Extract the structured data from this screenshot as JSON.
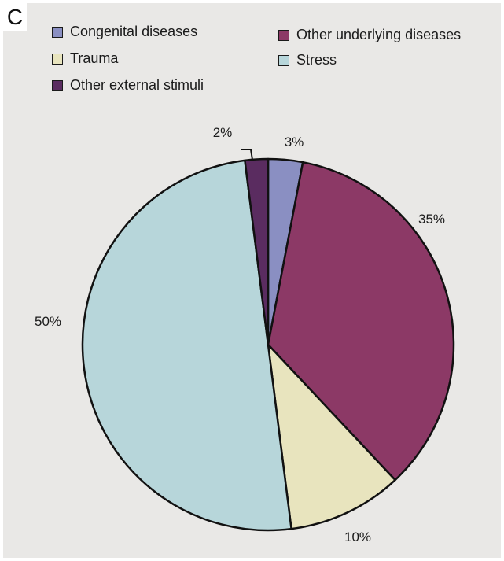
{
  "panel_label": "C",
  "chart_data": {
    "type": "pie",
    "title": "",
    "legend_position": "top",
    "slices": [
      {
        "label": "Congenital diseases",
        "value": 3,
        "value_label": "3%",
        "color": "#8a8fc2"
      },
      {
        "label": "Other underlying diseases",
        "value": 35,
        "value_label": "35%",
        "color": "#8c3966"
      },
      {
        "label": "Trauma",
        "value": 10,
        "value_label": "10%",
        "color": "#e8e4be"
      },
      {
        "label": "Stress",
        "value": 50,
        "value_label": "50%",
        "color": "#b7d6da"
      },
      {
        "label": "Other external stimuli",
        "value": 2,
        "value_label": "2%",
        "color": "#5a2c60"
      }
    ]
  }
}
